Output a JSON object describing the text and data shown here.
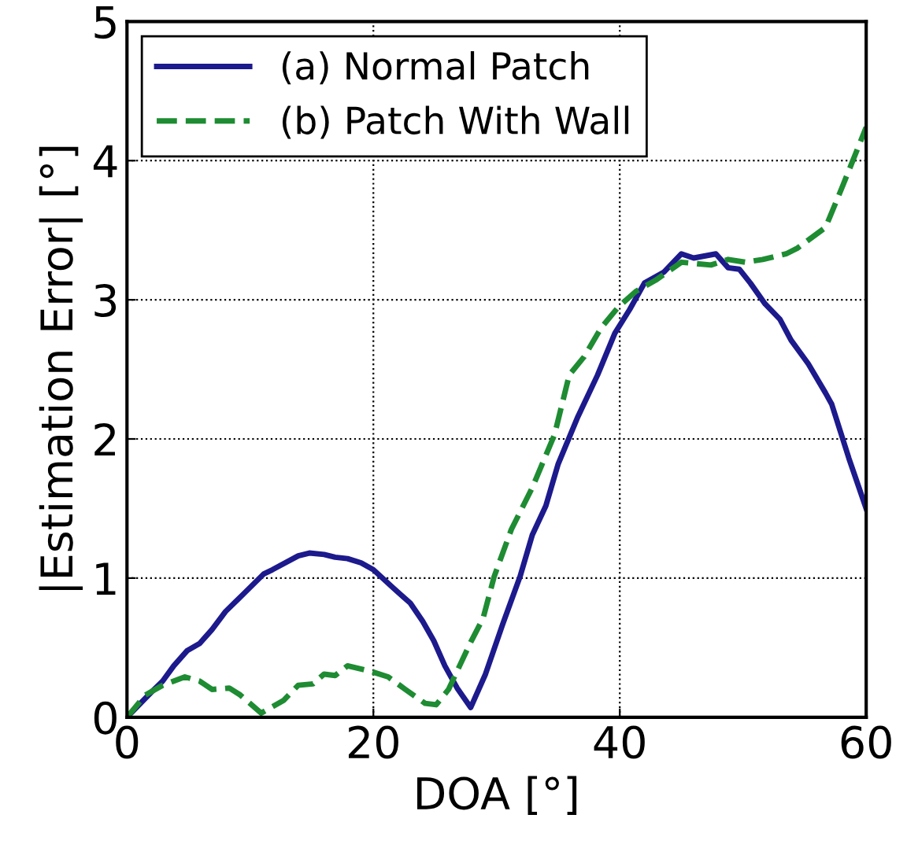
{
  "chart_data": {
    "type": "line",
    "xlabel": "DOA [°]",
    "ylabel": "|Estimation Error| [°]",
    "xlim": [
      0,
      60
    ],
    "ylim": [
      0,
      5
    ],
    "xticks": [
      0,
      20,
      40,
      60
    ],
    "yticks": [
      0,
      1,
      2,
      3,
      4,
      5
    ],
    "grid": true,
    "legend": "top left",
    "series": [
      {
        "name": "(a) Normal Patch",
        "color": "#1c1a8c",
        "line_style": "solid",
        "x": [
          0,
          1.97,
          2.9,
          3.8,
          4.9,
          5.9,
          6.9,
          8.0,
          9.5,
          11.1,
          11.8,
          13.9,
          14.8,
          16.0,
          16.9,
          17.9,
          19.0,
          20.0,
          21.6,
          23.0,
          24.0,
          24.9,
          25.8,
          26.8,
          27.9,
          29.1,
          30.5,
          31.9,
          32.9,
          34.0,
          35.0,
          36.6,
          38.2,
          39.6,
          40.8,
          42.0,
          43.6,
          45.0,
          46.0,
          47.8,
          48.8,
          49.7,
          50.6,
          51.8,
          53.0,
          53.9,
          55.3,
          56.7,
          57.2,
          58.6,
          60
        ],
        "values": [
          0,
          0.18,
          0.26,
          0.37,
          0.48,
          0.53,
          0.63,
          0.76,
          0.89,
          1.03,
          1.06,
          1.16,
          1.18,
          1.17,
          1.15,
          1.14,
          1.11,
          1.06,
          0.93,
          0.82,
          0.69,
          0.55,
          0.37,
          0.21,
          0.07,
          0.31,
          0.67,
          1.01,
          1.31,
          1.52,
          1.82,
          2.16,
          2.46,
          2.76,
          2.93,
          3.12,
          3.2,
          3.33,
          3.3,
          3.33,
          3.23,
          3.22,
          3.12,
          2.97,
          2.86,
          2.71,
          2.54,
          2.33,
          2.25,
          1.86,
          1.5
        ]
      },
      {
        "name": "(b) Patch With Wall",
        "color": "#1e8c32",
        "line_style": "dashed",
        "x": [
          0,
          1.5,
          2.9,
          4.7,
          5.9,
          6.9,
          8.3,
          9.2,
          10.9,
          12.7,
          13.9,
          15.1,
          16.0,
          16.9,
          17.9,
          19.8,
          21.2,
          22.6,
          24.2,
          25.1,
          26.1,
          27.0,
          27.9,
          28.9,
          29.8,
          31.2,
          32.9,
          34.7,
          35.9,
          37.1,
          38.5,
          39.9,
          41.3,
          42.9,
          45.0,
          47.4,
          48.8,
          50.2,
          51.6,
          53.5,
          54.4,
          56.7,
          58.1,
          60
        ],
        "values": [
          0,
          0.16,
          0.23,
          0.29,
          0.26,
          0.2,
          0.21,
          0.16,
          0.03,
          0.12,
          0.23,
          0.24,
          0.31,
          0.3,
          0.37,
          0.33,
          0.29,
          0.2,
          0.1,
          0.09,
          0.2,
          0.37,
          0.54,
          0.71,
          1.01,
          1.35,
          1.65,
          2.03,
          2.46,
          2.59,
          2.8,
          2.95,
          3.06,
          3.14,
          3.27,
          3.25,
          3.29,
          3.27,
          3.29,
          3.33,
          3.37,
          3.52,
          3.82,
          4.24
        ]
      }
    ]
  }
}
